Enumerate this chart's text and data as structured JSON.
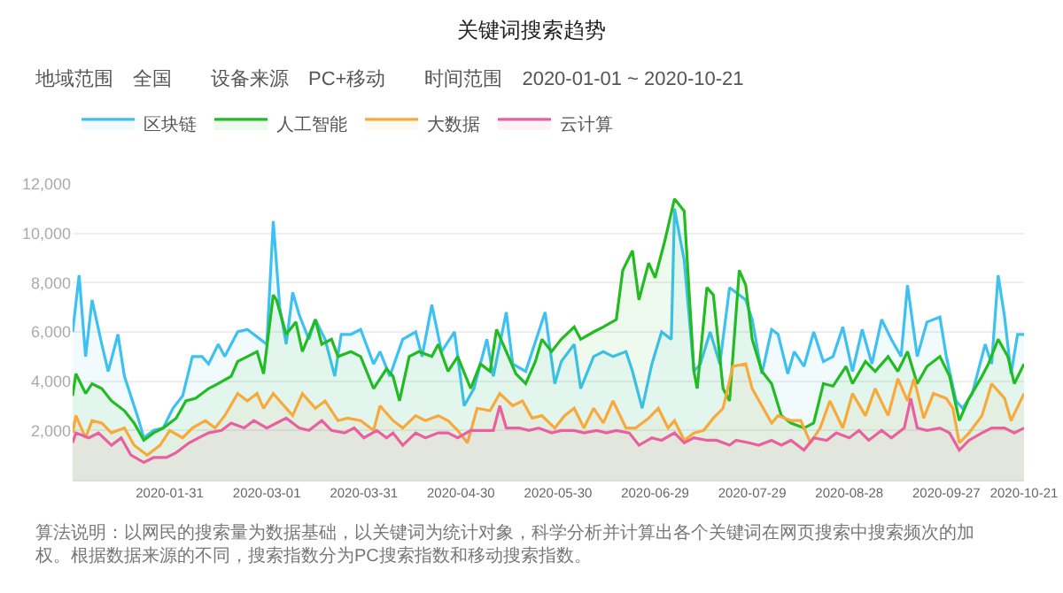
{
  "chart_data": {
    "type": "area",
    "title": "关键词搜索趋势",
    "subtitle": "地域范围　全国　　设备来源　PC+移动　　时间范围　2020-01-01 ~ 2020-10-21",
    "annotations": [
      "算法说明：以网民的搜索量为数据基础，以关键词为统计对象，科学分析并计算出各个关键词在网页搜索中搜索频次的加权。根据数据来源的不同，搜索指数分为PC搜索指数和移动搜索指数。"
    ],
    "xlim": [
      "2020-01-01",
      "2020-10-21"
    ],
    "xticks": [
      "2020-01-31",
      "2020-03-01",
      "2020-03-31",
      "2020-04-30",
      "2020-05-30",
      "2020-06-29",
      "2020-07-29",
      "2020-08-28",
      "2020-09-27",
      "2020-10-21"
    ],
    "ylim": [
      0,
      12000
    ],
    "yticks": [
      {
        "value": 2000,
        "label": "2,000"
      },
      {
        "value": 4000,
        "label": "4,000"
      },
      {
        "value": 6000,
        "label": "6,000"
      },
      {
        "value": 8000,
        "label": "8,000"
      },
      {
        "value": 10000,
        "label": "10,000"
      },
      {
        "value": 12000,
        "label": "12,000"
      }
    ],
    "grid": "y",
    "legend": "top left",
    "marker": "none",
    "line_style": "solid",
    "series": [
      {
        "name": "区块链",
        "color": "#3ec1f0",
        "x": [
          "2020-01-01",
          "2020-01-03",
          "2020-01-05",
          "2020-01-07",
          "2020-01-10",
          "2020-01-12",
          "2020-01-15",
          "2020-01-17",
          "2020-01-21",
          "2020-01-23",
          "2020-01-26",
          "2020-01-29",
          "2020-02-01",
          "2020-02-04",
          "2020-02-07",
          "2020-02-10",
          "2020-02-12",
          "2020-02-15",
          "2020-02-17",
          "2020-02-21",
          "2020-02-24",
          "2020-02-28",
          "2020-03-01",
          "2020-03-03",
          "2020-03-05",
          "2020-03-07",
          "2020-03-09",
          "2020-03-11",
          "2020-03-14",
          "2020-03-16",
          "2020-03-19",
          "2020-03-22",
          "2020-03-24",
          "2020-03-27",
          "2020-03-30",
          "2020-04-03",
          "2020-04-05",
          "2020-04-08",
          "2020-04-12",
          "2020-04-16",
          "2020-04-18",
          "2020-04-21",
          "2020-04-24",
          "2020-04-28",
          "2020-05-01",
          "2020-05-04",
          "2020-05-08",
          "2020-05-10",
          "2020-05-14",
          "2020-05-16",
          "2020-05-20",
          "2020-05-22",
          "2020-05-26",
          "2020-05-29",
          "2020-05-31",
          "2020-06-04",
          "2020-06-06",
          "2020-06-10",
          "2020-06-13",
          "2020-06-16",
          "2020-06-20",
          "2020-06-22",
          "2020-06-25",
          "2020-06-28",
          "2020-07-01",
          "2020-07-04",
          "2020-07-05",
          "2020-07-08",
          "2020-07-11",
          "2020-07-13",
          "2020-07-16",
          "2020-07-19",
          "2020-07-22",
          "2020-07-27",
          "2020-07-29",
          "2020-08-01",
          "2020-08-04",
          "2020-08-06",
          "2020-08-09",
          "2020-08-11",
          "2020-08-14",
          "2020-08-17",
          "2020-08-20",
          "2020-08-23",
          "2020-08-26",
          "2020-08-29",
          "2020-09-01",
          "2020-09-04",
          "2020-09-07",
          "2020-09-10",
          "2020-09-13",
          "2020-09-15",
          "2020-09-18",
          "2020-09-21",
          "2020-09-25",
          "2020-09-27",
          "2020-09-30",
          "2020-10-02",
          "2020-10-05",
          "2020-10-09",
          "2020-10-11",
          "2020-10-13",
          "2020-10-15",
          "2020-10-17",
          "2020-10-19",
          "2020-10-21"
        ],
        "values": [
          6000,
          8300,
          5000,
          7300,
          5500,
          4400,
          5900,
          4200,
          2600,
          1700,
          2000,
          2100,
          2900,
          3400,
          5000,
          5000,
          4700,
          5500,
          5000,
          6000,
          6100,
          5700,
          5500,
          10500,
          7000,
          5500,
          7600,
          6700,
          5700,
          6500,
          5700,
          4200,
          5900,
          5900,
          6100,
          4700,
          5200,
          4200,
          5700,
          6000,
          5000,
          7100,
          5200,
          6000,
          3000,
          3700,
          5700,
          4200,
          6800,
          4700,
          4400,
          5200,
          6800,
          3900,
          4800,
          5500,
          3700,
          5000,
          5200,
          5000,
          5200,
          4400,
          2900,
          4700,
          6000,
          5700,
          11000,
          8900,
          4400,
          4700,
          6000,
          4700,
          7800,
          7300,
          6500,
          4300,
          6100,
          5900,
          4300,
          5200,
          4600,
          6000,
          4800,
          5000,
          6200,
          4400,
          6100,
          4700,
          6500,
          5700,
          5000,
          7900,
          5000,
          6400,
          6600,
          5000,
          3200,
          2900,
          3500,
          5500,
          4700,
          8300,
          6600,
          4300,
          5900,
          5900
        ]
      },
      {
        "name": "人工智能",
        "color": "#22bb22",
        "x": [
          "2020-01-01",
          "2020-01-02",
          "2020-01-05",
          "2020-01-07",
          "2020-01-10",
          "2020-01-13",
          "2020-01-17",
          "2020-01-20",
          "2020-01-23",
          "2020-01-26",
          "2020-01-29",
          "2020-02-02",
          "2020-02-05",
          "2020-02-08",
          "2020-02-12",
          "2020-02-15",
          "2020-02-19",
          "2020-02-21",
          "2020-02-24",
          "2020-02-27",
          "2020-02-29",
          "2020-03-03",
          "2020-03-04",
          "2020-03-07",
          "2020-03-10",
          "2020-03-12",
          "2020-03-16",
          "2020-03-18",
          "2020-03-21",
          "2020-03-23",
          "2020-03-27",
          "2020-03-30",
          "2020-04-03",
          "2020-04-07",
          "2020-04-09",
          "2020-04-11",
          "2020-04-14",
          "2020-04-17",
          "2020-04-21",
          "2020-04-23",
          "2020-04-26",
          "2020-04-29",
          "2020-05-03",
          "2020-05-06",
          "2020-05-09",
          "2020-05-11",
          "2020-05-14",
          "2020-05-17",
          "2020-05-20",
          "2020-05-23",
          "2020-05-25",
          "2020-05-28",
          "2020-05-31",
          "2020-06-04",
          "2020-06-06",
          "2020-06-10",
          "2020-06-13",
          "2020-06-17",
          "2020-06-19",
          "2020-06-22",
          "2020-06-24",
          "2020-06-27",
          "2020-06-29",
          "2020-07-02",
          "2020-07-05",
          "2020-07-08",
          "2020-07-11",
          "2020-07-12",
          "2020-07-15",
          "2020-07-17",
          "2020-07-20",
          "2020-07-22",
          "2020-07-25",
          "2020-07-27",
          "2020-07-29",
          "2020-08-01",
          "2020-08-04",
          "2020-08-07",
          "2020-08-10",
          "2020-08-14",
          "2020-08-17",
          "2020-08-20",
          "2020-08-23",
          "2020-08-27",
          "2020-08-29",
          "2020-09-02",
          "2020-09-05",
          "2020-09-09",
          "2020-09-12",
          "2020-09-15",
          "2020-09-18",
          "2020-09-21",
          "2020-09-25",
          "2020-09-28",
          "2020-10-01",
          "2020-10-04",
          "2020-10-08",
          "2020-10-10",
          "2020-10-13",
          "2020-10-16",
          "2020-10-18",
          "2020-10-21"
        ],
        "values": [
          3400,
          4300,
          3500,
          3900,
          3700,
          3200,
          2800,
          2300,
          1600,
          1900,
          2100,
          2500,
          3200,
          3300,
          3700,
          3900,
          4200,
          4800,
          5000,
          5200,
          4300,
          7500,
          7300,
          5900,
          6400,
          5200,
          6500,
          5500,
          5700,
          5000,
          5200,
          5000,
          3700,
          4500,
          4200,
          3200,
          5000,
          5200,
          5000,
          5500,
          4400,
          5000,
          3700,
          4700,
          4400,
          6100,
          5200,
          4300,
          3900,
          4800,
          5700,
          5200,
          5700,
          6200,
          5700,
          6000,
          6200,
          6500,
          8500,
          9300,
          7300,
          8800,
          8200,
          9700,
          11400,
          10900,
          4400,
          3700,
          7800,
          7500,
          3700,
          3200,
          8500,
          7900,
          5700,
          4400,
          3900,
          2600,
          2300,
          2100,
          2300,
          3900,
          3800,
          4600,
          3900,
          4800,
          4400,
          5000,
          4400,
          5200,
          3900,
          4600,
          5000,
          4200,
          2400,
          3300,
          4200,
          4700,
          5700,
          5000,
          3900,
          4700
        ]
      },
      {
        "name": "大数据",
        "color": "#f7a93b",
        "x": [
          "2020-01-01",
          "2020-01-02",
          "2020-01-05",
          "2020-01-07",
          "2020-01-10",
          "2020-01-13",
          "2020-01-17",
          "2020-01-20",
          "2020-01-24",
          "2020-01-28",
          "2020-01-31",
          "2020-02-04",
          "2020-02-07",
          "2020-02-11",
          "2020-02-14",
          "2020-02-17",
          "2020-02-21",
          "2020-02-24",
          "2020-02-27",
          "2020-02-29",
          "2020-03-03",
          "2020-03-05",
          "2020-03-09",
          "2020-03-12",
          "2020-03-16",
          "2020-03-19",
          "2020-03-23",
          "2020-03-26",
          "2020-03-30",
          "2020-04-03",
          "2020-04-05",
          "2020-04-09",
          "2020-04-12",
          "2020-04-16",
          "2020-04-19",
          "2020-04-23",
          "2020-04-26",
          "2020-04-29",
          "2020-05-02",
          "2020-05-05",
          "2020-05-09",
          "2020-05-12",
          "2020-05-16",
          "2020-05-19",
          "2020-05-22",
          "2020-05-25",
          "2020-05-29",
          "2020-06-01",
          "2020-06-04",
          "2020-06-07",
          "2020-06-10",
          "2020-06-13",
          "2020-06-16",
          "2020-06-20",
          "2020-06-23",
          "2020-06-27",
          "2020-06-30",
          "2020-07-03",
          "2020-07-05",
          "2020-07-08",
          "2020-07-11",
          "2020-07-14",
          "2020-07-17",
          "2020-07-20",
          "2020-07-23",
          "2020-07-27",
          "2020-07-29",
          "2020-08-01",
          "2020-08-04",
          "2020-08-06",
          "2020-08-10",
          "2020-08-13",
          "2020-08-16",
          "2020-08-19",
          "2020-08-22",
          "2020-08-26",
          "2020-08-29",
          "2020-09-02",
          "2020-09-05",
          "2020-09-09",
          "2020-09-12",
          "2020-09-15",
          "2020-09-17",
          "2020-09-20",
          "2020-09-23",
          "2020-09-27",
          "2020-09-29",
          "2020-10-01",
          "2020-10-04",
          "2020-10-08",
          "2020-10-11",
          "2020-10-15",
          "2020-10-17",
          "2020-10-21"
        ],
        "values": [
          1900,
          2600,
          1700,
          2400,
          2300,
          1900,
          2100,
          1400,
          1000,
          1400,
          2000,
          1700,
          2100,
          2400,
          2100,
          2600,
          3500,
          3200,
          3500,
          2900,
          3500,
          3200,
          2600,
          3500,
          2900,
          3200,
          2400,
          2500,
          2400,
          2000,
          3000,
          2400,
          2100,
          2600,
          2400,
          2600,
          2400,
          2000,
          1500,
          2900,
          2800,
          3500,
          3000,
          3200,
          2500,
          2600,
          2100,
          2600,
          2900,
          2100,
          2900,
          2300,
          3200,
          2100,
          2100,
          2500,
          2900,
          2100,
          2400,
          1600,
          1900,
          2000,
          2500,
          2900,
          4600,
          4700,
          3700,
          3000,
          2300,
          2600,
          2400,
          2400,
          1500,
          2100,
          3200,
          2100,
          3500,
          2600,
          3700,
          2600,
          4100,
          3200,
          4100,
          2500,
          3500,
          3300,
          2900,
          1500,
          1900,
          2600,
          3900,
          3300,
          2400,
          3500
        ]
      },
      {
        "name": "云计算",
        "color": "#e8609f",
        "x": [
          "2020-01-01",
          "2020-01-02",
          "2020-01-06",
          "2020-01-09",
          "2020-01-13",
          "2020-01-16",
          "2020-01-19",
          "2020-01-23",
          "2020-01-26",
          "2020-01-30",
          "2020-02-02",
          "2020-02-06",
          "2020-02-09",
          "2020-02-12",
          "2020-02-16",
          "2020-02-19",
          "2020-02-23",
          "2020-02-26",
          "2020-03-01",
          "2020-03-04",
          "2020-03-07",
          "2020-03-11",
          "2020-03-14",
          "2020-03-18",
          "2020-03-21",
          "2020-03-25",
          "2020-03-28",
          "2020-03-31",
          "2020-04-04",
          "2020-04-07",
          "2020-04-09",
          "2020-04-12",
          "2020-04-16",
          "2020-04-19",
          "2020-04-23",
          "2020-04-26",
          "2020-04-29",
          "2020-05-03",
          "2020-05-06",
          "2020-05-10",
          "2020-05-12",
          "2020-05-14",
          "2020-05-18",
          "2020-05-21",
          "2020-05-24",
          "2020-05-28",
          "2020-05-31",
          "2020-06-04",
          "2020-06-07",
          "2020-06-11",
          "2020-06-14",
          "2020-06-17",
          "2020-06-21",
          "2020-06-24",
          "2020-06-28",
          "2020-07-01",
          "2020-07-05",
          "2020-07-08",
          "2020-07-11",
          "2020-07-15",
          "2020-07-18",
          "2020-07-22",
          "2020-07-24",
          "2020-07-28",
          "2020-07-31",
          "2020-08-04",
          "2020-08-07",
          "2020-08-10",
          "2020-08-14",
          "2020-08-17",
          "2020-08-21",
          "2020-08-24",
          "2020-08-28",
          "2020-08-31",
          "2020-09-03",
          "2020-09-07",
          "2020-09-10",
          "2020-09-14",
          "2020-09-16",
          "2020-09-18",
          "2020-09-21",
          "2020-09-25",
          "2020-09-28",
          "2020-10-01",
          "2020-10-04",
          "2020-10-08",
          "2020-10-11",
          "2020-10-15",
          "2020-10-18",
          "2020-10-21"
        ],
        "values": [
          1500,
          1900,
          1700,
          1900,
          1400,
          1700,
          1000,
          700,
          900,
          900,
          1100,
          1500,
          1700,
          1900,
          2000,
          2300,
          2100,
          2400,
          2100,
          2300,
          2500,
          2100,
          2000,
          2400,
          2000,
          1900,
          2100,
          1700,
          2000,
          1700,
          1900,
          1400,
          1900,
          1700,
          1900,
          1900,
          1700,
          2000,
          2000,
          2000,
          3000,
          2100,
          2100,
          2000,
          2100,
          1900,
          2000,
          2000,
          1900,
          2000,
          1900,
          2000,
          1900,
          1400,
          1700,
          1600,
          1900,
          1500,
          1700,
          1600,
          1600,
          1400,
          1600,
          1500,
          1400,
          1600,
          1400,
          1600,
          1200,
          1700,
          1600,
          1900,
          1700,
          2000,
          1600,
          2000,
          1700,
          2100,
          3300,
          2100,
          2000,
          2100,
          1900,
          1200,
          1600,
          1900,
          2100,
          2100,
          1900,
          2100
        ]
      }
    ]
  }
}
